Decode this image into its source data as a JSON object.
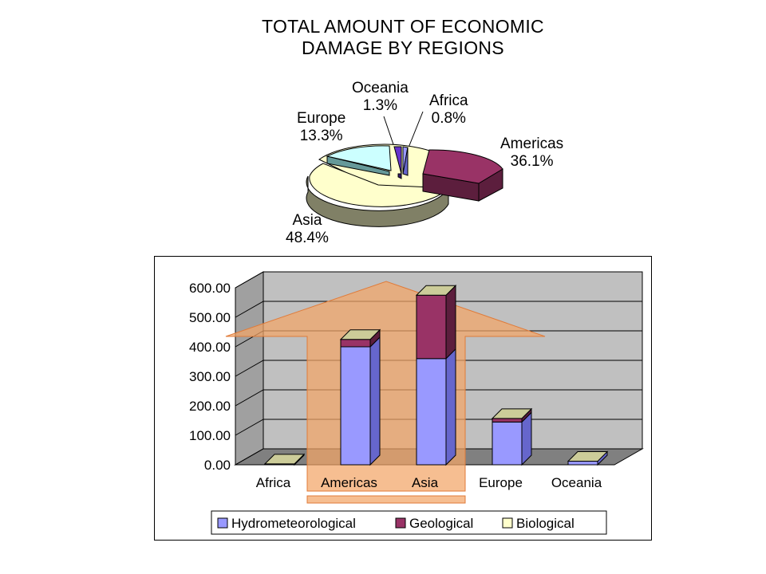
{
  "title": {
    "line1": "TOTAL AMOUNT OF ECONOMIC",
    "line2": "DAMAGE BY REGIONS"
  },
  "colors": {
    "hydro": "#9999ff",
    "hydro_side": "#6666cc",
    "geo": "#993366",
    "geo_side": "#5c1e3d",
    "bio": "#ffffcc",
    "bio_side": "#808066",
    "europe_slice": "#ccffff",
    "europe_side": "#669999",
    "oceania_slice": "#6633cc",
    "africa_slice": "#9999ff",
    "wall": "#c0c0c0",
    "floor": "#808080",
    "arrow": "#f3a566",
    "arrow_edge": "#e07b39"
  },
  "chart_data": [
    {
      "type": "pie",
      "title": "TOTAL AMOUNT OF ECONOMIC DAMAGE BY REGIONS",
      "slices": [
        {
          "label": "Americas",
          "value": 36.1,
          "display": "36.1%"
        },
        {
          "label": "Asia",
          "value": 48.4,
          "display": "48.4%"
        },
        {
          "label": "Europe",
          "value": 13.3,
          "display": "13.3%"
        },
        {
          "label": "Oceania",
          "value": 1.3,
          "display": "1.3%"
        },
        {
          "label": "Africa",
          "value": 0.8,
          "display": "0.8%"
        }
      ]
    },
    {
      "type": "bar",
      "stacked": true,
      "three_d": true,
      "categories": [
        "Africa",
        "Americas",
        "Asia",
        "Europe",
        "Oceania"
      ],
      "series": [
        {
          "name": "Hydrometeorological",
          "values": [
            3,
            400,
            360,
            145,
            12
          ]
        },
        {
          "name": "Geological",
          "values": [
            0,
            25,
            215,
            12,
            0
          ]
        },
        {
          "name": "Biological",
          "values": [
            0,
            0,
            0,
            0,
            0
          ]
        }
      ],
      "ylim": [
        0,
        600
      ],
      "yticks": [
        "0.00",
        "100.00",
        "200.00",
        "300.00",
        "400.00",
        "500.00",
        "600.00"
      ],
      "grid": true,
      "legend_position": "bottom"
    }
  ]
}
